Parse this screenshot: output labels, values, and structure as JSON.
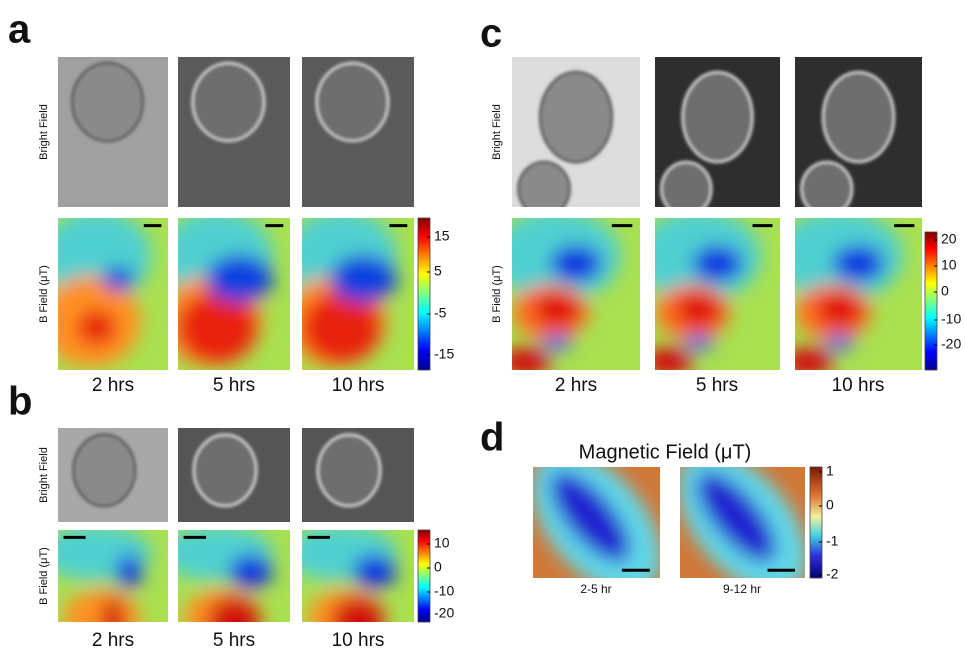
{
  "panels": [
    {
      "label": "a",
      "row_labels": [
        "Bright Field",
        "B Field  (μT)"
      ],
      "time_labels": [
        "2 hrs",
        "5 hrs",
        "10 hrs"
      ],
      "colorbar_ticks": [
        15,
        5,
        -5,
        -15
      ]
    },
    {
      "label": "b",
      "row_labels": [
        "Bright Field",
        "B Field  (μT)"
      ],
      "time_labels": [
        "2 hrs",
        "5 hrs",
        "10 hrs"
      ],
      "colorbar_ticks": [
        10,
        0,
        -10,
        -20
      ]
    },
    {
      "label": "c",
      "row_labels": [
        "Bright Field",
        "B Field  (μT)"
      ],
      "time_labels": [
        "2 hrs",
        "5 hrs",
        "10 hrs"
      ],
      "colorbar_ticks": [
        20,
        10,
        0,
        -10,
        -20
      ]
    },
    {
      "label": "d",
      "title": "Magnetic Field  (μT)",
      "captions": [
        "2-5 hr",
        "9-12 hr"
      ],
      "colorbar_ticks": [
        1,
        0,
        -1,
        -2
      ]
    }
  ]
}
